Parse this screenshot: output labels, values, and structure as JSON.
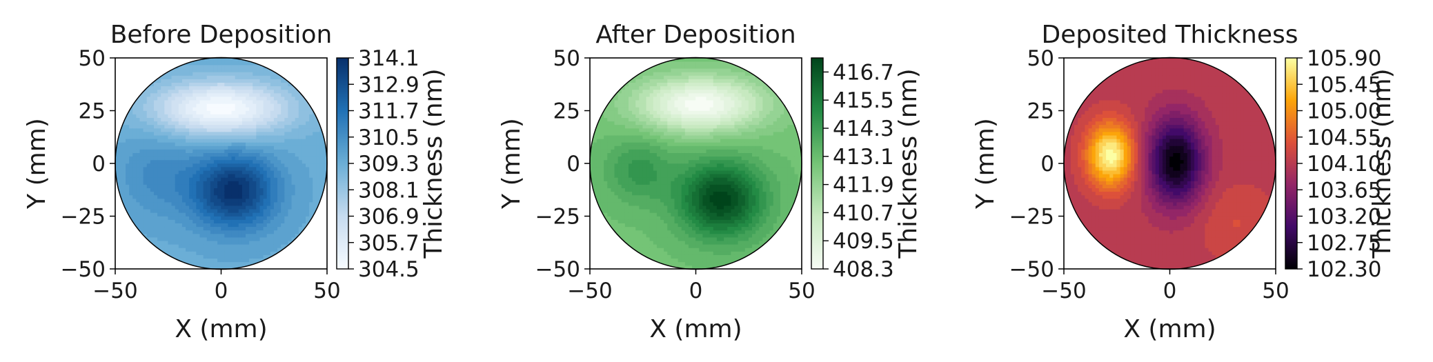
{
  "chart_data": [
    {
      "type": "heatmap",
      "title": "Before Deposition",
      "xlabel": "X (mm)",
      "ylabel": "Y (mm)",
      "xlim": [
        -50,
        50
      ],
      "ylim": [
        -50,
        50
      ],
      "xticks": [
        "−50",
        "0",
        "50"
      ],
      "yticks": [
        "50",
        "25",
        "0",
        "−25",
        "−50"
      ],
      "colormap": "Blues",
      "colors": [
        "#f7fbff",
        "#c6dbef",
        "#6baed6",
        "#2171b5",
        "#08306b"
      ],
      "colorbar": {
        "label": "Thickness (nm)",
        "range": [
          304.5,
          314.1
        ],
        "ticks": [
          "314.1",
          "312.9",
          "311.7",
          "310.5",
          "309.3",
          "308.1",
          "306.9",
          "305.7",
          "304.5"
        ]
      },
      "features": [
        {
          "x": 0,
          "y": 26,
          "value": 304.5,
          "description": "minimum"
        },
        {
          "x": 6,
          "y": -13,
          "value": 314.1,
          "description": "maximum"
        }
      ]
    },
    {
      "type": "heatmap",
      "title": "After Deposition",
      "xlabel": "X (mm)",
      "ylabel": "Y (mm)",
      "xlim": [
        -50,
        50
      ],
      "ylim": [
        -50,
        50
      ],
      "xticks": [
        "−50",
        "0",
        "50"
      ],
      "yticks": [
        "50",
        "25",
        "0",
        "−25",
        "−50"
      ],
      "colormap": "Greens",
      "colors": [
        "#f7fcf5",
        "#c7e9c0",
        "#74c476",
        "#238b45",
        "#00441b"
      ],
      "colorbar": {
        "label": "Thickness (nm)",
        "range": [
          408.3,
          417.3
        ],
        "ticks": [
          "416.7",
          "415.5",
          "414.3",
          "413.1",
          "411.9",
          "410.7",
          "409.5",
          "408.3"
        ]
      },
      "features": [
        {
          "x": 2,
          "y": 28,
          "value": 408.3,
          "description": "minimum"
        },
        {
          "x": 12,
          "y": -17,
          "value": 417.3,
          "description": "maximum"
        }
      ]
    },
    {
      "type": "heatmap",
      "title": "Deposited Thickness",
      "xlabel": "X (mm)",
      "ylabel": "Y (mm)",
      "xlim": [
        -50,
        50
      ],
      "ylim": [
        -50,
        50
      ],
      "xticks": [
        "−50",
        "0",
        "50"
      ],
      "yticks": [
        "50",
        "25",
        "0",
        "−25",
        "−50"
      ],
      "colormap": "inferno",
      "colors": [
        "#000004",
        "#420a68",
        "#932667",
        "#dd513a",
        "#fca50a",
        "#fcffa4"
      ],
      "colorbar": {
        "label": "Thickness (nm)",
        "range": [
          102.3,
          105.9
        ],
        "ticks": [
          "105.90",
          "105.45",
          "105.00",
          "104.55",
          "104.10",
          "103.65",
          "103.20",
          "102.75",
          "102.30"
        ]
      },
      "features": [
        {
          "x": -28,
          "y": 4,
          "value": 105.9,
          "description": "maximum"
        },
        {
          "x": 3,
          "y": 1,
          "value": 102.3,
          "description": "minimum"
        }
      ]
    }
  ]
}
